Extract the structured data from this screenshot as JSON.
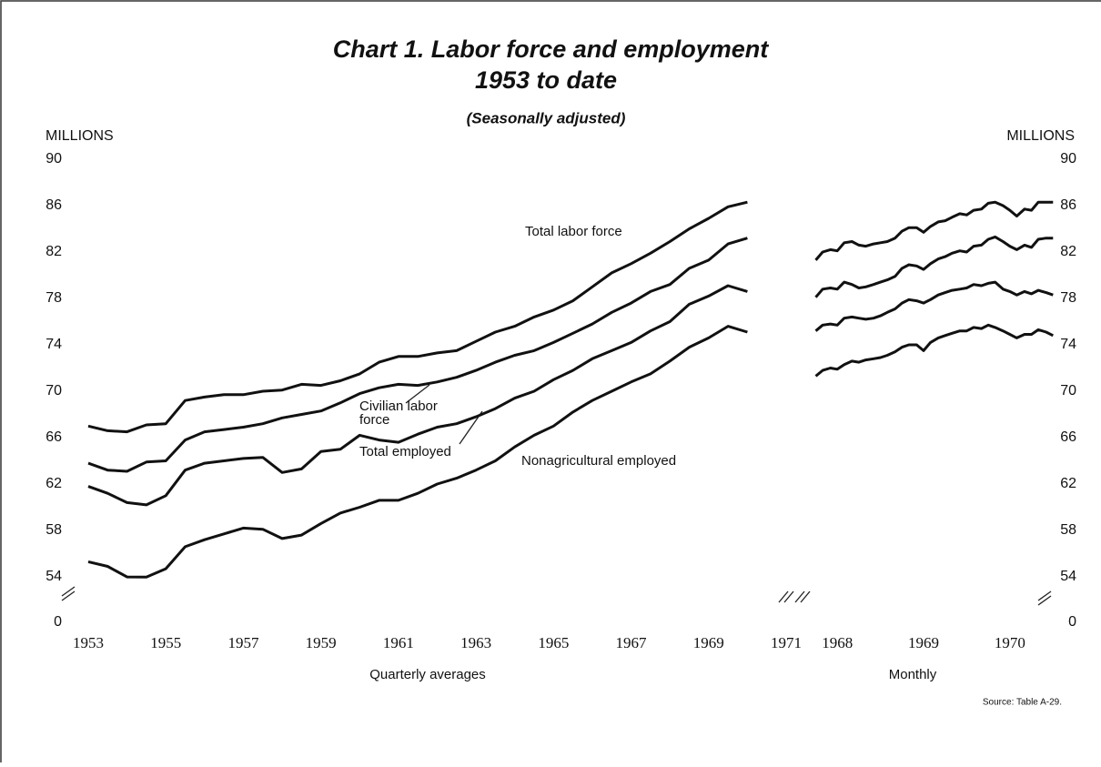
{
  "title": [
    "Chart 1. Labor force and employment",
    "1953 to date"
  ],
  "subtitle": "(Seasonally adjusted)",
  "source": "Source: Table A-29.",
  "chart_data": [
    {
      "type": "line",
      "ylabel": "MILLIONS",
      "xlabel": "Quarterly averages",
      "x": [
        1953,
        1953.5,
        1954,
        1954.5,
        1955,
        1955.5,
        1956,
        1956.5,
        1957,
        1957.5,
        1958,
        1958.5,
        1959,
        1959.5,
        1960,
        1960.5,
        1961,
        1961.5,
        1962,
        1962.5,
        1963,
        1963.5,
        1964,
        1964.5,
        1965,
        1965.5,
        1966,
        1966.5,
        1967,
        1967.5,
        1968,
        1968.5,
        1969,
        1969.5,
        1970
      ],
      "xlim": [
        1953,
        1971
      ],
      "xticks": [
        1953,
        1955,
        1957,
        1959,
        1961,
        1963,
        1965,
        1967,
        1969,
        1971
      ],
      "ylim": [
        0,
        90
      ],
      "y_break": [
        0,
        54
      ],
      "yticks": [
        0,
        54,
        58,
        62,
        66,
        70,
        74,
        78,
        82,
        86,
        90
      ],
      "series": [
        {
          "color": "#111111",
          "values": [
            67.0,
            66.6,
            66.5,
            67.1,
            67.2,
            69.2,
            69.5,
            69.7,
            69.7,
            70.0,
            70.1,
            70.6,
            70.5,
            70.9,
            71.5,
            72.5,
            73.0,
            73.0,
            73.3,
            73.5,
            74.3,
            75.1,
            75.6,
            76.4,
            77.0,
            77.8,
            79.0,
            80.2,
            81.0,
            81.9,
            82.9,
            84.0,
            84.9,
            85.9,
            86.3
          ]
        },
        {
          "color": "#111111",
          "values": [
            63.8,
            63.2,
            63.1,
            63.9,
            64.0,
            65.8,
            66.5,
            66.7,
            66.9,
            67.2,
            67.7,
            68.0,
            68.3,
            69.0,
            69.8,
            70.3,
            70.6,
            70.5,
            70.8,
            71.2,
            71.8,
            72.5,
            73.1,
            73.5,
            74.2,
            75.0,
            75.8,
            76.8,
            77.6,
            78.6,
            79.2,
            80.6,
            81.3,
            82.7,
            83.2
          ]
        },
        {
          "color": "#111111",
          "values": [
            61.8,
            61.2,
            60.4,
            60.2,
            61.0,
            63.2,
            63.8,
            64.0,
            64.2,
            64.3,
            63.0,
            63.3,
            64.8,
            65.0,
            66.2,
            65.8,
            65.6,
            66.3,
            66.9,
            67.2,
            67.8,
            68.5,
            69.4,
            70.0,
            71.0,
            71.8,
            72.8,
            73.5,
            74.2,
            75.2,
            76.0,
            77.5,
            78.2,
            79.1,
            78.6
          ]
        },
        {
          "color": "#111111",
          "values": [
            55.3,
            54.9,
            53.9,
            53.7,
            54.7,
            56.6,
            57.2,
            57.7,
            58.2,
            58.1,
            57.3,
            57.6,
            58.6,
            59.5,
            60.0,
            60.6,
            60.6,
            61.2,
            62.0,
            62.5,
            63.2,
            64.0,
            65.2,
            66.2,
            67.0,
            68.2,
            69.2,
            70.0,
            70.8,
            71.5,
            72.6,
            73.8,
            74.6,
            75.6,
            75.1
          ]
        }
      ],
      "annotations": [
        [
          "Total labor force"
        ],
        [
          "Civilian labor",
          "force"
        ],
        [
          "Total employed"
        ],
        [
          "Nonagricultural employed"
        ]
      ]
    },
    {
      "type": "line",
      "ylabel": "MILLIONS",
      "xlabel": "Monthly",
      "x": [
        1967.75,
        1967.83,
        1967.92,
        1968,
        1968.08,
        1968.17,
        1968.25,
        1968.33,
        1968.42,
        1968.5,
        1968.58,
        1968.67,
        1968.75,
        1968.83,
        1968.92,
        1969,
        1969.08,
        1969.17,
        1969.25,
        1969.33,
        1969.42,
        1969.5,
        1969.58,
        1969.67,
        1969.75,
        1969.83,
        1969.92,
        1970,
        1970.08,
        1970.17,
        1970.25,
        1970.33,
        1970.42,
        1970.5
      ],
      "xlim": [
        1967.65,
        1970.55
      ],
      "xticks": [
        1968,
        1969,
        1970
      ],
      "ylim": [
        0,
        90
      ],
      "y_break": [
        0,
        54
      ],
      "yticks": [
        0,
        54,
        58,
        62,
        66,
        70,
        74,
        78,
        82,
        86,
        90
      ],
      "series": [
        {
          "color": "#111111",
          "values": [
            81.3,
            82.0,
            82.2,
            82.1,
            82.8,
            82.9,
            82.6,
            82.5,
            82.7,
            82.8,
            82.9,
            83.2,
            83.8,
            84.1,
            84.1,
            83.7,
            84.2,
            84.6,
            84.7,
            85.0,
            85.3,
            85.2,
            85.6,
            85.7,
            86.2,
            86.3,
            86.0,
            85.6,
            85.1,
            85.7,
            85.6,
            86.3,
            86.3,
            86.3
          ]
        },
        {
          "color": "#111111",
          "values": [
            78.1,
            78.8,
            78.9,
            78.8,
            79.4,
            79.2,
            78.9,
            79.0,
            79.2,
            79.4,
            79.6,
            79.9,
            80.6,
            80.9,
            80.8,
            80.5,
            81.0,
            81.4,
            81.6,
            81.9,
            82.1,
            82.0,
            82.5,
            82.6,
            83.1,
            83.3,
            82.9,
            82.5,
            82.2,
            82.6,
            82.4,
            83.1,
            83.2,
            83.2
          ]
        },
        {
          "color": "#111111",
          "values": [
            75.2,
            75.7,
            75.8,
            75.7,
            76.3,
            76.4,
            76.3,
            76.2,
            76.3,
            76.5,
            76.8,
            77.1,
            77.6,
            77.9,
            77.8,
            77.6,
            77.9,
            78.3,
            78.5,
            78.7,
            78.8,
            78.9,
            79.2,
            79.1,
            79.3,
            79.4,
            78.8,
            78.6,
            78.3,
            78.6,
            78.4,
            78.7,
            78.5,
            78.3
          ]
        },
        {
          "color": "#111111",
          "values": [
            71.3,
            71.8,
            72.0,
            71.9,
            72.3,
            72.6,
            72.5,
            72.7,
            72.8,
            72.9,
            73.1,
            73.4,
            73.8,
            74.0,
            74.0,
            73.5,
            74.2,
            74.6,
            74.8,
            75.0,
            75.2,
            75.2,
            75.5,
            75.4,
            75.7,
            75.5,
            75.2,
            74.9,
            74.6,
            74.9,
            74.9,
            75.3,
            75.1,
            74.8
          ]
        }
      ]
    }
  ]
}
